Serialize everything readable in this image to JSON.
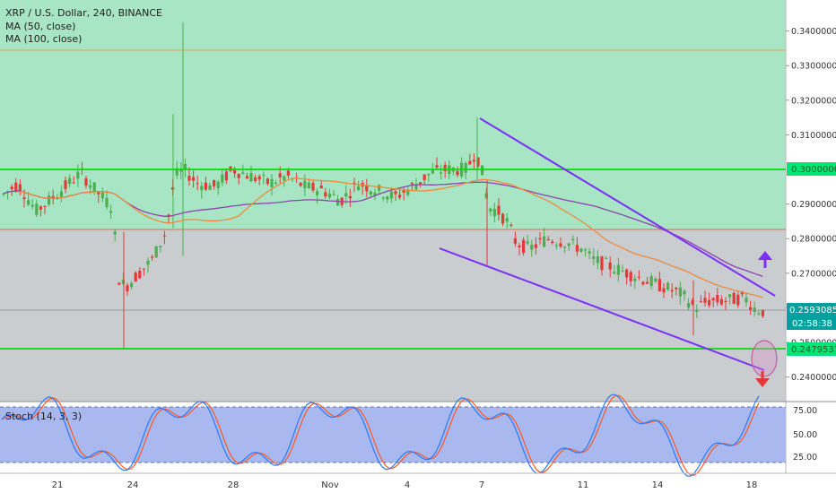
{
  "header": {
    "symbol_line": "XRP / U.S. Dollar, 240, BINANCE",
    "ma50_label": "MA (50, close)",
    "ma100_label": "MA (100, close)"
  },
  "stoch": {
    "label": "Stoch (14, 3, 3)"
  },
  "price_axis": {
    "labels": [
      "0.34000000",
      "0.33000000",
      "0.32000000",
      "0.31000000",
      "0.30000000",
      "0.29000000",
      "0.28000000",
      "0.27000000",
      "0.26000000",
      "0.25000000",
      "0.24000000"
    ],
    "last_price": "0.25930850",
    "countdown": "02:58:38",
    "level_upper": "0.30000000",
    "level_lower": "0.24795370"
  },
  "stoch_axis": {
    "labels": [
      "75.00",
      "50.00",
      "25.00"
    ]
  },
  "time_axis": {
    "labels": [
      "21",
      "24",
      "28",
      "Nov",
      "4",
      "7",
      "11",
      "14",
      "18"
    ]
  },
  "colors": {
    "up_candle": "#4caf50",
    "down_candle": "#e53935",
    "ma50": "#ef8a3c",
    "ma100": "#8e44ad",
    "upper_zone": "#a8e5c4",
    "lower_zone": "#c9cdd0",
    "level_line": "#00e000",
    "channel": "#7b2ff7",
    "stoch_bg": "#a9b8ef",
    "stoch_k": "#2979ff",
    "stoch_d": "#ff5722"
  },
  "annotations": {
    "arrow_up": "arrow-up-icon",
    "arrow_down": "arrow-down-icon"
  },
  "chart_data": [
    {
      "type": "candlestick",
      "title": "XRP / U.S. Dollar, 240, BINANCE",
      "ylim": [
        0.235,
        0.35
      ],
      "x_ticks": [
        "21",
        "24",
        "28",
        "Nov",
        "4",
        "7",
        "11",
        "14",
        "18"
      ],
      "levels": [
        0.3,
        0.2479537
      ],
      "zones": [
        {
          "from": 0.2831,
          "to": 0.335,
          "color": "green"
        },
        {
          "from": 0.2383,
          "to": 0.2831,
          "color": "gray"
        }
      ],
      "last_price": 0.2593085,
      "channel_upper": [
        [
          0.315,
          0.263
        ]
      ],
      "channel_lower": [
        [
          0.277,
          0.243
        ]
      ],
      "series": [
        {
          "name": "MA (50, close)",
          "type": "line"
        },
        {
          "name": "MA (100, close)",
          "type": "line"
        }
      ]
    },
    {
      "type": "line",
      "title": "Stoch (14, 3, 3)",
      "ylim": [
        0,
        100
      ],
      "bands": [
        80,
        20
      ],
      "y_ticks": [
        75,
        50,
        25
      ]
    }
  ]
}
